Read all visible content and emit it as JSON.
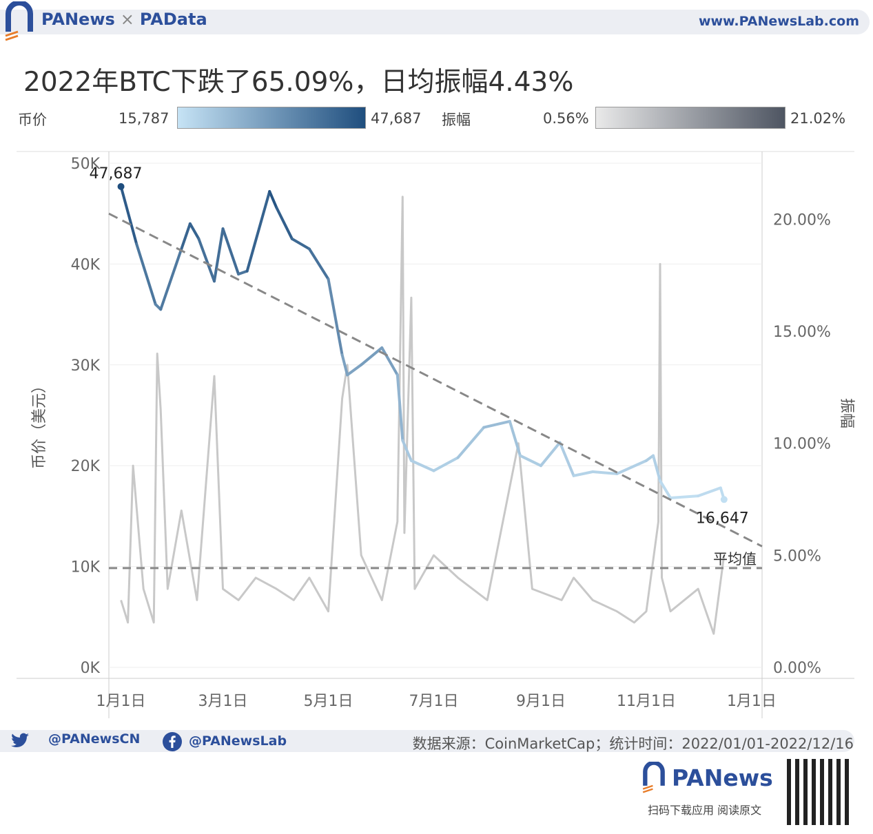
{
  "header": {
    "brand_left": "PANews",
    "brand_sep": "×",
    "brand_right": "PAData",
    "site": "www.PANewsLab.com"
  },
  "title": "2022年BTC下跌了65.09%，日均振幅4.43%",
  "legend": {
    "price_label": "币价",
    "price_min": "15,787",
    "price_max": "47,687",
    "price_color_low": "#c6e3f5",
    "price_color_high": "#1f4e7e",
    "amp_label": "振幅",
    "amp_min": "0.56%",
    "amp_max": "21.02%",
    "amp_color_low": "#e9e9e9",
    "amp_color_high": "#4e5562"
  },
  "footer": {
    "twitter": "@PANewsCN",
    "facebook": "@PANewsLab",
    "source": "数据来源：CoinMarketCap；统计时间：2022/01/01-2022/12/16",
    "logo": "PANews",
    "tagline": "扫码下载应用 阅读原文"
  },
  "chart_data": {
    "type": "line",
    "ylabel": "币价（美元）",
    "y2label": "振幅",
    "ylim": [
      0,
      50000
    ],
    "y2lim": [
      0,
      22.5
    ],
    "yticks": [
      "0K",
      "10K",
      "20K",
      "30K",
      "40K",
      "50K"
    ],
    "y2ticks": [
      "0.00%",
      "5.00%",
      "10.00%",
      "15.00%",
      "20.00%"
    ],
    "xticks": [
      "1月1日",
      "3月1日",
      "5月1日",
      "7月1日",
      "9月1日",
      "11月1日",
      "1月1日"
    ],
    "series": [
      {
        "name": "币价",
        "x": [
          "2022-01-01",
          "2022-01-10",
          "2022-01-21",
          "2022-01-24",
          "2022-02-05",
          "2022-02-10",
          "2022-02-15",
          "2022-02-24",
          "2022-03-01",
          "2022-03-10",
          "2022-03-15",
          "2022-03-28",
          "2022-04-01",
          "2022-04-10",
          "2022-04-20",
          "2022-05-01",
          "2022-05-09",
          "2022-05-12",
          "2022-05-20",
          "2022-06-01",
          "2022-06-10",
          "2022-06-13",
          "2022-06-18",
          "2022-07-01",
          "2022-07-15",
          "2022-07-30",
          "2022-08-14",
          "2022-08-20",
          "2022-09-01",
          "2022-09-12",
          "2022-09-20",
          "2022-10-01",
          "2022-10-15",
          "2022-11-01",
          "2022-11-05",
          "2022-11-09",
          "2022-11-15",
          "2022-12-01",
          "2022-12-14",
          "2022-12-16"
        ],
        "values": [
          47687,
          42000,
          36000,
          35500,
          41500,
          44000,
          42500,
          38300,
          43500,
          39000,
          39300,
          47200,
          45600,
          42500,
          41500,
          38500,
          31000,
          29000,
          30000,
          31700,
          29000,
          22500,
          20500,
          19500,
          20800,
          23800,
          24400,
          21000,
          20000,
          22300,
          19000,
          19400,
          19200,
          20500,
          21000,
          18500,
          16800,
          17000,
          17800,
          16647
        ]
      },
      {
        "name": "振幅",
        "x": [
          "2022-01-01",
          "2022-01-05",
          "2022-01-08",
          "2022-01-14",
          "2022-01-20",
          "2022-01-22",
          "2022-01-24",
          "2022-01-28",
          "2022-02-05",
          "2022-02-14",
          "2022-02-24",
          "2022-03-01",
          "2022-03-10",
          "2022-03-20",
          "2022-04-01",
          "2022-04-11",
          "2022-04-20",
          "2022-05-01",
          "2022-05-09",
          "2022-05-12",
          "2022-05-20",
          "2022-06-01",
          "2022-06-10",
          "2022-06-13",
          "2022-06-14",
          "2022-06-18",
          "2022-06-20",
          "2022-07-01",
          "2022-07-15",
          "2022-08-01",
          "2022-08-19",
          "2022-08-27",
          "2022-09-13",
          "2022-09-20",
          "2022-10-01",
          "2022-10-15",
          "2022-10-25",
          "2022-11-01",
          "2022-11-08",
          "2022-11-09",
          "2022-11-10",
          "2022-11-15",
          "2022-12-01",
          "2022-12-10",
          "2022-12-16"
        ],
        "values": [
          3.0,
          2.0,
          9.0,
          3.5,
          2.0,
          14.0,
          11.5,
          3.5,
          7.0,
          3.0,
          13.0,
          3.5,
          3.0,
          4.0,
          3.5,
          3.0,
          4.0,
          2.5,
          12.0,
          13.5,
          5.0,
          3.0,
          6.5,
          21.0,
          6.0,
          16.5,
          3.5,
          5.0,
          4.0,
          3.0,
          10.0,
          3.5,
          3.0,
          4.0,
          3.0,
          2.5,
          2.0,
          2.5,
          6.5,
          18.0,
          4.0,
          2.5,
          3.5,
          1.5,
          5.0
        ]
      }
    ],
    "annotations": [
      {
        "label": "47,687",
        "series": "币价",
        "x": "2022-01-01"
      },
      {
        "label": "16,647",
        "series": "币价",
        "x": "2022-12-16"
      },
      {
        "label": "平均值",
        "series": "振幅",
        "value": 4.43
      }
    ],
    "trendline": {
      "from": 45000,
      "to": 12000
    },
    "grid": true
  }
}
